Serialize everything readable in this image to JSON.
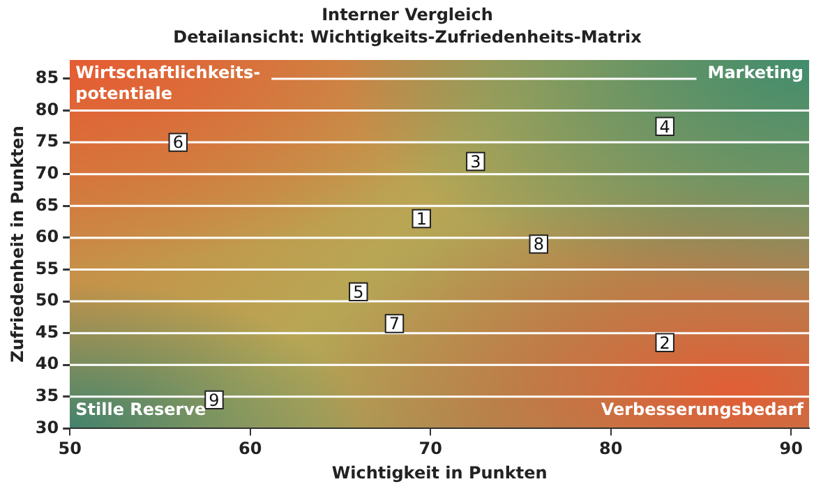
{
  "chart_data": {
    "type": "scatter",
    "title": "Interner Vergleich",
    "subtitle": "Detailansicht: Wichtigkeits-Zufriedenheits-Matrix",
    "xlabel": "Wichtigkeit in Punkten",
    "ylabel": "Zufriedenheit in Punkten",
    "series": [
      {
        "color": "#ffffff",
        "x": [
          69.5,
          83,
          72.5,
          83,
          66,
          56,
          68,
          76,
          58
        ],
        "values": [
          63,
          43.5,
          72,
          77.5,
          51.5,
          75,
          46.5,
          59,
          34.5
        ]
      }
    ],
    "marker": "square",
    "annotations": [
      "Wirtschaftlichkeits-potentiale",
      "Marketing",
      "Stille Reserve",
      "Verbesserungsbedarf",
      {
        "text": "1",
        "x": 69.5,
        "y": 63
      },
      {
        "text": "2",
        "x": 83,
        "y": 43.5
      },
      {
        "text": "3",
        "x": 72.5,
        "y": 72
      },
      {
        "text": "4",
        "x": 83,
        "y": 77.5
      },
      {
        "text": "5",
        "x": 66,
        "y": 51.5
      },
      {
        "text": "6",
        "x": 56,
        "y": 75
      },
      {
        "text": "7",
        "x": 68,
        "y": 46.5
      },
      {
        "text": "8",
        "x": 76,
        "y": 59
      },
      {
        "text": "9",
        "x": 58,
        "y": 34.5
      }
    ],
    "xlim": [
      50,
      91
    ],
    "xticks": [
      50,
      60,
      70,
      80,
      90
    ],
    "ylim": [
      30,
      88
    ],
    "yticks": [
      30,
      35,
      40,
      45,
      50,
      55,
      60,
      65,
      70,
      75,
      80,
      85
    ],
    "grid": "y",
    "legend": false
  }
}
